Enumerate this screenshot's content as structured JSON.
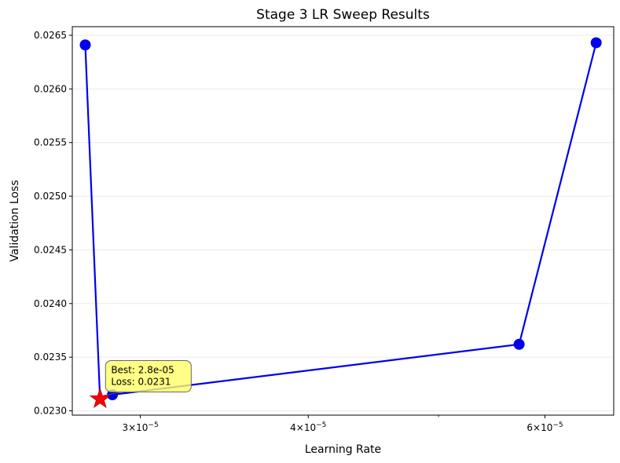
{
  "chart_data": {
    "type": "line",
    "title": "Stage 3 LR Sweep Results",
    "xlabel": "Learning Rate",
    "ylabel": "Validation Loss",
    "x_scale": "log",
    "xlim": [
      2.67e-05,
      6.75e-05
    ],
    "ylim": [
      0.02296,
      0.02658
    ],
    "grid": "horizontal",
    "x_ticks": [
      {
        "value": 3e-05,
        "mantissa": "3",
        "base": "10",
        "exponent": "−5"
      },
      {
        "value": 4e-05,
        "mantissa": "4",
        "base": "10",
        "exponent": "−5"
      },
      {
        "value": 6e-05,
        "mantissa": "6",
        "base": "10",
        "exponent": "−5"
      }
    ],
    "x_minor_ticks": [
      5e-05
    ],
    "y_ticks": [
      {
        "value": 0.023,
        "label": "0.0230"
      },
      {
        "value": 0.0235,
        "label": "0.0235"
      },
      {
        "value": 0.024,
        "label": "0.0240"
      },
      {
        "value": 0.0245,
        "label": "0.0245"
      },
      {
        "value": 0.025,
        "label": "0.0250"
      },
      {
        "value": 0.0255,
        "label": "0.0255"
      },
      {
        "value": 0.026,
        "label": "0.0260"
      },
      {
        "value": 0.0265,
        "label": "0.0265"
      }
    ],
    "series": [
      {
        "color": "#0000ee",
        "x": [
          2.73e-05,
          2.8e-05,
          2.86e-05,
          5.74e-05,
          6.55e-05
        ],
        "y": [
          0.02641,
          0.02311,
          0.02315,
          0.02362,
          0.02643
        ]
      }
    ],
    "best": {
      "x": 2.8e-05,
      "y": 0.02311,
      "marker_color": "#ff0000",
      "line1": "Best: 2.8e-05",
      "line2": "Loss: 0.0231"
    }
  }
}
